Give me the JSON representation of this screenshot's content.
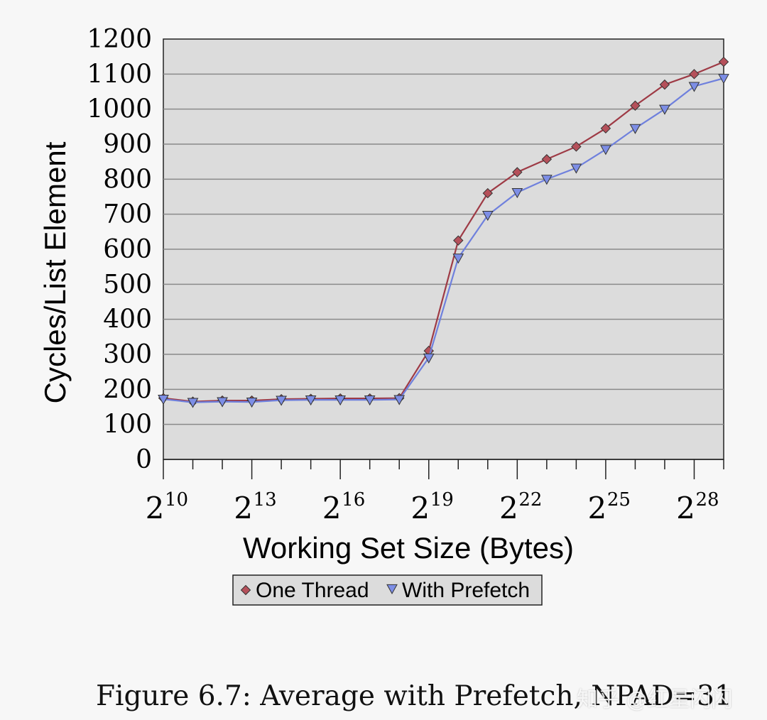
{
  "chart_data": {
    "type": "line",
    "xlabel": "Working Set Size (Bytes)",
    "ylabel": "Cycles/List Element",
    "ylim": [
      0,
      1200
    ],
    "yticks": [
      0,
      100,
      200,
      300,
      400,
      500,
      600,
      700,
      800,
      900,
      1000,
      1100,
      1200
    ],
    "x_exponents": [
      10,
      11,
      12,
      13,
      14,
      15,
      16,
      17,
      18,
      19,
      20,
      21,
      22,
      23,
      24,
      25,
      26,
      27,
      28,
      29
    ],
    "x_tick_labels": [
      {
        "base": "2",
        "exp": "10",
        "at": 10
      },
      {
        "base": "2",
        "exp": "13",
        "at": 13
      },
      {
        "base": "2",
        "exp": "16",
        "at": 16
      },
      {
        "base": "2",
        "exp": "19",
        "at": 19
      },
      {
        "base": "2",
        "exp": "22",
        "at": 22
      },
      {
        "base": "2",
        "exp": "25",
        "at": 25
      },
      {
        "base": "2",
        "exp": "28",
        "at": 28
      }
    ],
    "grid": true,
    "legend_position": "bottom",
    "series": [
      {
        "name": "One Thread",
        "marker": "diamond",
        "color": "#9e3a45",
        "fill": "#b5505a",
        "values": [
          175,
          165,
          168,
          168,
          172,
          173,
          174,
          174,
          175,
          310,
          625,
          760,
          820,
          857,
          893,
          945,
          1010,
          1070,
          1100,
          1135
        ]
      },
      {
        "name": "With Prefetch",
        "marker": "triangle-down",
        "color": "#6f80dd",
        "fill": "#7d8ee6",
        "values": [
          172,
          163,
          165,
          164,
          169,
          170,
          170,
          170,
          171,
          290,
          575,
          697,
          762,
          800,
          832,
          885,
          945,
          1000,
          1065,
          1088
        ]
      }
    ]
  },
  "caption": "Figure 6.7: Average with Prefetch, NPAD=31",
  "watermark": "知乎 @红星闪闪"
}
